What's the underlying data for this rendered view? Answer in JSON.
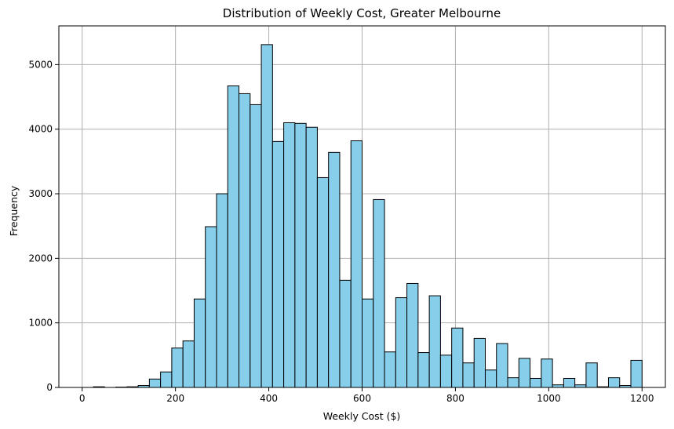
{
  "chart_data": {
    "type": "bar",
    "title": "Distribution of Weekly Cost, Greater Melbourne",
    "xlabel": "Weekly Cost ($)",
    "ylabel": "Frequency",
    "xlim": [
      -50,
      1250
    ],
    "ylim": [
      0,
      5600
    ],
    "xticks": [
      0,
      200,
      400,
      600,
      800,
      1000,
      1200
    ],
    "yticks": [
      0,
      1000,
      2000,
      3000,
      4000,
      5000
    ],
    "grid": true,
    "bar_color": "#87ceeb",
    "edge_color": "#000000",
    "bin_start": 0,
    "bin_width": 24,
    "values": [
      0,
      10,
      0,
      5,
      10,
      30,
      130,
      240,
      610,
      720,
      1370,
      2490,
      3000,
      4670,
      4550,
      4380,
      5310,
      3810,
      4100,
      4090,
      4030,
      3250,
      3640,
      1660,
      3820,
      1370,
      2910,
      550,
      1390,
      1610,
      540,
      1420,
      500,
      920,
      380,
      760,
      270,
      680,
      150,
      450,
      140,
      440,
      40,
      140,
      40,
      380,
      10,
      150,
      30,
      420
    ]
  }
}
